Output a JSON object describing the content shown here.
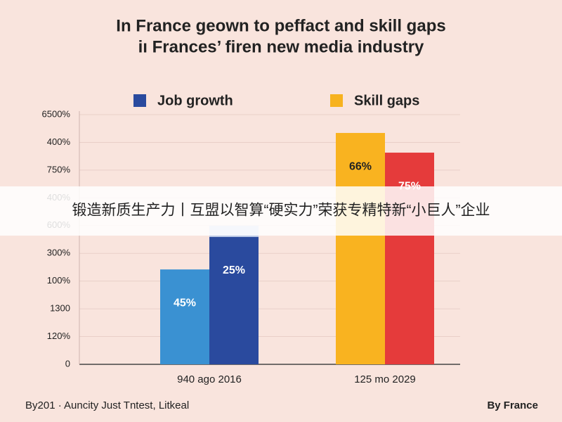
{
  "chart_data": {
    "type": "bar",
    "title": [
      "In France geown to peffact and skill gaps",
      "iı Frances’ firen new media industry"
    ],
    "legend": [
      {
        "name": "Job growth",
        "color": "#2a4a9e"
      },
      {
        "name": "Skill gaps",
        "color": "#f7b21e"
      }
    ],
    "groups": [
      {
        "label": "940 ago 2016",
        "bars": [
          {
            "values": [
              3.42
            ],
            "colors": [
              "#3a91d2"
            ],
            "value_label": "45%",
            "label_color": "#ffffff"
          },
          {
            "values": [
              4.59,
              0.41
            ],
            "colors": [
              "#2a4a9e",
              "#b9c7e6"
            ],
            "value_label": "25%",
            "label_color": "#ffffff"
          }
        ]
      },
      {
        "label": "125 mo 2029",
        "bars": [
          {
            "values": [
              8.34
            ],
            "colors": [
              "#f9b320"
            ],
            "value_label": "66%",
            "label_color": "#222222"
          },
          {
            "values": [
              7.63
            ],
            "colors": [
              "#e53b3b"
            ],
            "value_label": "75%",
            "label_color": "#ffffff"
          }
        ]
      }
    ],
    "ylim": [
      0,
      9
    ],
    "yticks": [
      0,
      {
        "value": 1,
        "label": "120%"
      },
      {
        "value": 2,
        "label": "1300"
      },
      {
        "value": 3,
        "label": "100%"
      },
      {
        "value": 4,
        "label": "300%"
      },
      {
        "value": 5,
        "label": "600%"
      },
      {
        "value": 6,
        "label": "400%"
      },
      {
        "value": 7,
        "label": "750%"
      },
      {
        "value": 8,
        "label": "400%"
      },
      {
        "value": 9,
        "label": "6500%"
      }
    ],
    "grid": true,
    "footer_left": "By201 · Auncity Just Tntest, Litkeal",
    "footer_right": "By France"
  },
  "banner": "锻造新质生产力丨互盟以智算“硬实力”荣获专精特新“小巨人”企业"
}
